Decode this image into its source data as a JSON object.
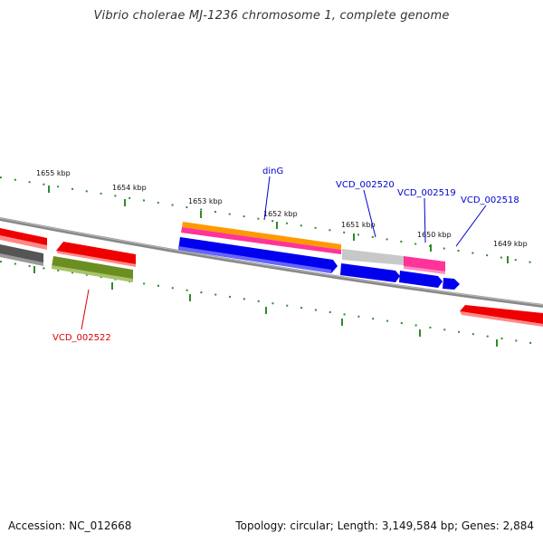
{
  "title": "Vibrio cholerae MJ-1236 chromosome 1, complete genome",
  "footer": {
    "accession": "Accession: NC_012668",
    "summary": "Topology: circular; Length: 3,149,584 bp; Genes: 2,884"
  },
  "colors": {
    "backbone": "#808080",
    "ticks": "#2e8b2e",
    "forward_cds": "#0000ee",
    "reverse_cds": "#ee0000",
    "label_blue": "#0000cc",
    "label_red": "#dd0000",
    "orange": "#ff9900",
    "pink": "#ff3399",
    "gray_feature": "#c8c8c8",
    "olive": "#6b8e23",
    "dark_gray": "#555555"
  },
  "kbp_labels": [
    "1655 kbp",
    "1654 kbp",
    "1653 kbp",
    "1652 kbp",
    "1651 kbp",
    "1650 kbp",
    "1649 kbp"
  ],
  "gene_labels": [
    {
      "text": "dinG",
      "color": "blue"
    },
    {
      "text": "VCD_002520",
      "color": "blue"
    },
    {
      "text": "VCD_002519",
      "color": "blue"
    },
    {
      "text": "VCD_002518",
      "color": "blue"
    },
    {
      "text": "VCD_002522",
      "color": "red"
    }
  ]
}
